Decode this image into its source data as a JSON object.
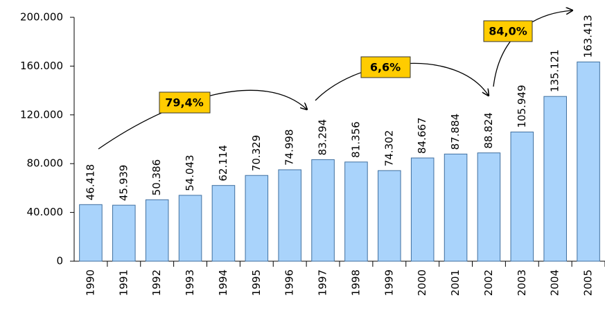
{
  "chart_data": {
    "type": "bar",
    "categories": [
      "1990",
      "1991",
      "1992",
      "1993",
      "1994",
      "1995",
      "1996",
      "1997",
      "1998",
      "1999",
      "2000",
      "2001",
      "2002",
      "2003",
      "2004",
      "2005"
    ],
    "values": [
      46418,
      45939,
      50386,
      54043,
      62114,
      70329,
      74998,
      83294,
      81356,
      74302,
      84667,
      87884,
      88824,
      105949,
      135121,
      163413
    ],
    "value_labels": [
      "46.418",
      "45.939",
      "50.386",
      "54.043",
      "62.114",
      "70.329",
      "74.998",
      "83.294",
      "81.356",
      "74.302",
      "84.667",
      "87.884",
      "88.824",
      "105.949",
      "135.121",
      "163.413"
    ],
    "color": "#a9d3fb",
    "ylim": [
      0,
      200000
    ],
    "yticks": [
      0,
      {
        "value": 40000,
        "label": "40.000"
      },
      {
        "value": 80000,
        "label": "80.000"
      },
      {
        "value": 120000,
        "label": "120.000"
      },
      {
        "value": 160000,
        "label": "160.000"
      },
      {
        "value": 200000,
        "label": "200.000"
      }
    ],
    "grid": false,
    "annotations": [
      {
        "text": "79,4%"
      },
      {
        "text": "6,6%"
      },
      {
        "text": "84,0%"
      }
    ]
  }
}
